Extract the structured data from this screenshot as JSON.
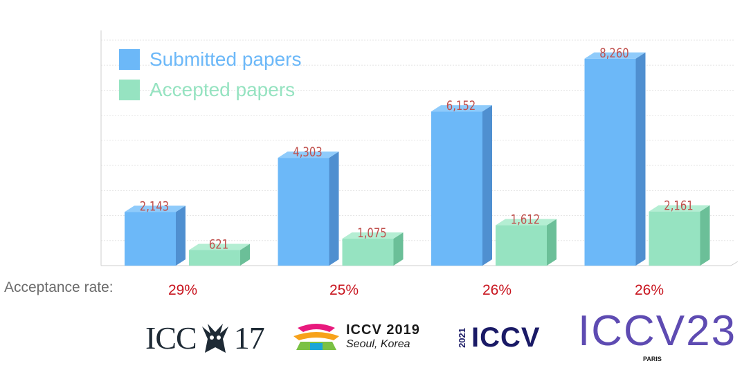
{
  "chart_data": {
    "type": "bar",
    "categories": [
      "ICCV 2017",
      "ICCV 2019",
      "ICCV 2021",
      "ICCV 2023"
    ],
    "series": [
      {
        "name": "Submitted papers",
        "values": [
          2143,
          4303,
          6152,
          8260
        ],
        "labels": [
          "2,143",
          "4,303",
          "6,152",
          "8,260"
        ],
        "color": "#6cb8f8",
        "side_color": "#4f8fd0",
        "top_color": "#8fcbfb"
      },
      {
        "name": "Accepted papers",
        "values": [
          621,
          1075,
          1612,
          2161
        ],
        "labels": [
          "621",
          "1,075",
          "1,612",
          "2,161"
        ],
        "color": "#96e3c1",
        "side_color": "#6bbf98",
        "top_color": "#b4eed3"
      }
    ],
    "ylim": [
      0,
      9000
    ],
    "grid": true,
    "legend": "top-left",
    "data_label_color": "#c0504d"
  },
  "acceptance": {
    "label": "Acceptance rate:",
    "rates": [
      "29%",
      "25%",
      "26%",
      "26%"
    ]
  },
  "logos": {
    "iccv17": {
      "left": "ICC",
      "right": "17"
    },
    "iccv19": {
      "line1": "ICCV 2019",
      "line2": "Seoul, Korea"
    },
    "iccv21": {
      "year": "2021",
      "name": "ICCV"
    },
    "iccv23": {
      "name": "ICCV",
      "year": "23",
      "city": "PARIS"
    }
  }
}
